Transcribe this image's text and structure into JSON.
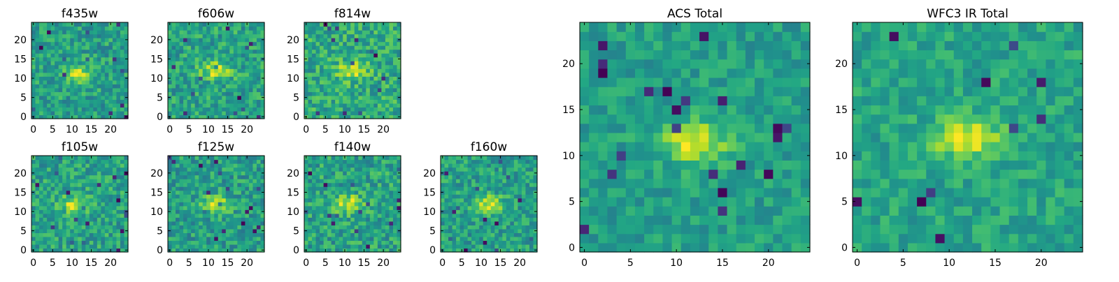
{
  "chart_data": [
    {
      "type": "heatmap",
      "title": "f435w",
      "grid_size": 25,
      "xticks": [
        0,
        5,
        10,
        15,
        20
      ],
      "yticks": [
        0,
        5,
        10,
        15,
        20
      ],
      "xlim": [
        -0.5,
        24.5
      ],
      "ylim": [
        -0.5,
        24.5
      ],
      "colormap": "viridis",
      "peak_center": [
        12,
        11
      ],
      "pattern": "mostly noise with a faint bright blob near the center"
    },
    {
      "type": "heatmap",
      "title": "f606w",
      "grid_size": 25,
      "xticks": [
        0,
        5,
        10,
        15,
        20
      ],
      "yticks": [
        0,
        5,
        10,
        15,
        20
      ],
      "xlim": [
        -0.5,
        24.5
      ],
      "ylim": [
        -0.5,
        24.5
      ],
      "colormap": "viridis",
      "peak_center": [
        12,
        12
      ],
      "pattern": "bright compact source at center on noisy background"
    },
    {
      "type": "heatmap",
      "title": "f814w",
      "grid_size": 25,
      "xticks": [
        0,
        5,
        10,
        15,
        20
      ],
      "yticks": [
        0,
        5,
        10,
        15,
        20
      ],
      "xlim": [
        -0.5,
        24.5
      ],
      "ylim": [
        -0.5,
        24.5
      ],
      "colormap": "viridis",
      "peak_center": [
        12,
        12
      ],
      "pattern": "noisy with faint central source"
    },
    {
      "type": "heatmap",
      "title": "f105w",
      "grid_size": 25,
      "xticks": [
        0,
        5,
        10,
        15,
        20
      ],
      "yticks": [
        0,
        5,
        10,
        15,
        20
      ],
      "xlim": [
        -0.5,
        24.5
      ],
      "ylim": [
        -0.5,
        24.5
      ],
      "colormap": "viridis",
      "peak_center": [
        11,
        12
      ],
      "pattern": "extended bright central source, dark patches below"
    },
    {
      "type": "heatmap",
      "title": "f125w",
      "grid_size": 25,
      "xticks": [
        0,
        5,
        10,
        15,
        20
      ],
      "yticks": [
        0,
        5,
        10,
        15,
        20
      ],
      "xlim": [
        -0.5,
        24.5
      ],
      "ylim": [
        -0.5,
        24.5
      ],
      "colormap": "viridis",
      "peak_center": [
        12,
        12
      ],
      "pattern": "smooth extended emission with dark spots"
    },
    {
      "type": "heatmap",
      "title": "f140w",
      "grid_size": 25,
      "xticks": [
        0,
        5,
        10,
        15,
        20
      ],
      "yticks": [
        0,
        5,
        10,
        15,
        20
      ],
      "xlim": [
        -0.5,
        24.5
      ],
      "ylim": [
        -0.5,
        24.5
      ],
      "colormap": "viridis",
      "peak_center": [
        11,
        12
      ],
      "pattern": "elongated central source"
    },
    {
      "type": "heatmap",
      "title": "f160w",
      "grid_size": 25,
      "xticks": [
        0,
        5,
        10,
        15,
        20
      ],
      "yticks": [
        0,
        5,
        10,
        15,
        20
      ],
      "xlim": [
        -0.5,
        24.5
      ],
      "ylim": [
        -0.5,
        24.5
      ],
      "colormap": "viridis",
      "peak_center": [
        12,
        12
      ],
      "pattern": "bright central blob with dark streaks"
    },
    {
      "type": "heatmap",
      "title": "ACS Total",
      "grid_size": 25,
      "xticks": [
        0,
        5,
        10,
        15,
        20
      ],
      "yticks": [
        0,
        5,
        10,
        15,
        20
      ],
      "xlim": [
        -0.5,
        24.5
      ],
      "ylim": [
        -0.5,
        24.5
      ],
      "colormap": "viridis",
      "peak_center": [
        12,
        11.5
      ],
      "pattern": "bright compact source near center on green background"
    },
    {
      "type": "heatmap",
      "title": "WFC3 IR Total",
      "grid_size": 25,
      "xticks": [
        0,
        5,
        10,
        15,
        20
      ],
      "yticks": [
        0,
        5,
        10,
        15,
        20
      ],
      "xlim": [
        -0.5,
        24.5
      ],
      "ylim": [
        -0.5,
        24.5
      ],
      "colormap": "viridis",
      "peak_center": [
        12,
        12
      ],
      "pattern": "elongated bright source at center, dark spots near edges"
    }
  ]
}
